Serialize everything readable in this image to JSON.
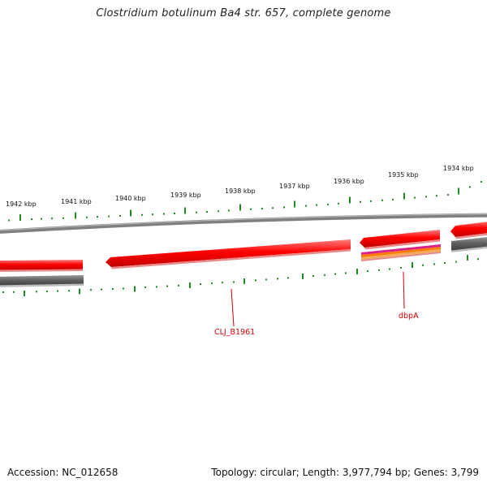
{
  "title": "Clostridium botulinum Ba4 str. 657, complete genome",
  "footer": {
    "accession": "Accession: NC_012658",
    "stats": "Topology: circular; Length: 3,977,794 bp; Genes: 3,799"
  },
  "scale_labels": [
    "1942 kbp",
    "1941 kbp",
    "1940 kbp",
    "1939 kbp",
    "1938 kbp",
    "1937 kbp",
    "1936 kbp",
    "1935 kbp",
    "1934 kbp"
  ],
  "gene_labels": [
    "CLJ_B1961",
    "dbpA"
  ],
  "colors": {
    "gene": "#ff0000",
    "gene_shade": "#b40000",
    "backbone": "#808080",
    "ticks": "#1f8a1f",
    "label": "#d40000"
  }
}
